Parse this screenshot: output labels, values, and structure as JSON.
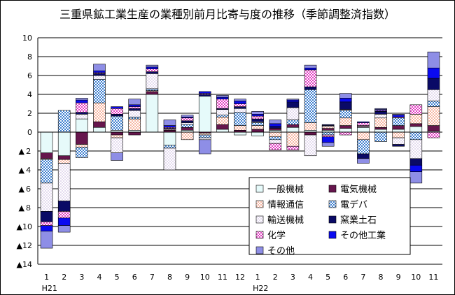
{
  "chart_data": {
    "type": "bar",
    "stacked": true,
    "title": "三重県鉱工業生産の業種別前月比寄与度の推移（季節調整済指数）",
    "categories": [
      "1",
      "2",
      "3",
      "4",
      "5",
      "6",
      "7",
      "8",
      "9",
      "10",
      "11",
      "12",
      "1",
      "2",
      "3",
      "4",
      "5",
      "6",
      "7",
      "8",
      "9",
      "10",
      "11"
    ],
    "year_labels": [
      {
        "index": 0,
        "label": "H21"
      },
      {
        "index": 12,
        "label": "H22"
      }
    ],
    "ylim": [
      -14,
      10
    ],
    "y_ticks": [
      10,
      8,
      6,
      4,
      2,
      0,
      -2,
      -4,
      -6,
      -8,
      -10,
      -12,
      -14
    ],
    "y_tick_labels": [
      "10",
      "8",
      "6",
      "4",
      "2",
      "0",
      "▲２",
      "▲４",
      "▲６",
      "▲８",
      "▲10",
      "▲12",
      "▲14"
    ],
    "grid": true,
    "legend_position": "bottom-right",
    "series": [
      {
        "name": "一般機械",
        "color": "#e6fafa",
        "pattern": "plain",
        "values": [
          -2.2,
          -2.5,
          1.4,
          0.5,
          0.2,
          0.2,
          4.0,
          -1.4,
          0.2,
          3.8,
          0.3,
          -0.3,
          -0.4,
          0.2,
          0.5,
          0.2,
          0.2,
          0.4,
          0.5,
          0.3,
          0.3,
          0.6,
          0.1
        ]
      },
      {
        "name": "電気機械",
        "color": "#66164d",
        "pattern": "plain",
        "values": [
          -0.6,
          -0.4,
          -1.3,
          0.6,
          -0.3,
          -0.3,
          0.3,
          0.2,
          0.3,
          -0.1,
          0.5,
          0.2,
          0.3,
          0.2,
          0.3,
          -0.3,
          0.2,
          0.3,
          0.1,
          0.2,
          0.4,
          0.3,
          0.6
        ]
      },
      {
        "name": "情報通信",
        "color": "#f7b7a3",
        "pattern": "dots",
        "values": [
          -0.1,
          -0.4,
          -0.3,
          2.0,
          -0.3,
          1.2,
          0.1,
          0.1,
          -0.8,
          -0.2,
          0.8,
          0.5,
          0.4,
          -0.5,
          -1.5,
          0.8,
          0.2,
          0.8,
          -0.8,
          1.0,
          -0.6,
          1.0,
          2.0
        ]
      },
      {
        "name": "電デバ",
        "color": "#3d7fd0",
        "pattern": "checker",
        "values": [
          -2.5,
          2.3,
          -1.1,
          2.5,
          1.5,
          0.2,
          0.2,
          -0.3,
          0.3,
          -0.3,
          0.2,
          1.4,
          0.3,
          -0.3,
          0.5,
          3.5,
          -0.3,
          0.8,
          -1.5,
          -1.0,
          0.8,
          -0.8,
          0.6
        ]
      },
      {
        "name": "輸送機械",
        "color": "#e4dbef",
        "pattern": "dots",
        "values": [
          -3.0,
          -4.0,
          0.5,
          0.4,
          -1.6,
          0.7,
          1.6,
          -2.3,
          0.2,
          -0.2,
          0.6,
          0.4,
          0.1,
          -0.4,
          1.3,
          -2.2,
          0.1,
          0.1,
          0.1,
          0.4,
          -0.7,
          -2.0,
          1.2
        ]
      },
      {
        "name": "窯業土石",
        "color": "#0a0a66",
        "pattern": "plain",
        "values": [
          -1.1,
          -1.1,
          0.2,
          0.2,
          0.2,
          0.2,
          0.2,
          0.1,
          0.2,
          0.2,
          0.1,
          0.2,
          0.3,
          0.2,
          0.6,
          0.3,
          0.1,
          0.8,
          -0.5,
          0.3,
          -0.2,
          -0.7,
          1.2
        ]
      },
      {
        "name": "化学",
        "color": "#e33cc3",
        "pattern": "checker",
        "values": [
          -0.4,
          -0.7,
          1.0,
          0.1,
          0.6,
          0.2,
          0.3,
          0.1,
          0.3,
          0.1,
          1.0,
          0.3,
          0.3,
          -0.7,
          -0.4,
          1.8,
          -0.2,
          -0.3,
          0.3,
          0.1,
          0.1,
          1.0,
          -0.6
        ]
      },
      {
        "name": "その他工業",
        "color": "#0a0af0",
        "pattern": "plain",
        "values": [
          -0.6,
          -0.8,
          0.3,
          0.2,
          0.2,
          0.2,
          0.2,
          0.2,
          0.1,
          0.2,
          0.2,
          0.3,
          0.2,
          0.3,
          0.2,
          0.2,
          -0.6,
          0.4,
          0.1,
          0.1,
          0.2,
          -0.7,
          1.1
        ]
      },
      {
        "name": "その他",
        "color": "#8e8ee6",
        "pattern": "plain",
        "values": [
          -1.8,
          -0.7,
          0.2,
          0.7,
          -0.8,
          0.6,
          0.2,
          0.6,
          0.2,
          -1.5,
          0.2,
          0.2,
          0.3,
          0.4,
          0.1,
          0.3,
          -0.4,
          0.5,
          -0.5,
          0.1,
          0.1,
          -1.2,
          1.7
        ]
      }
    ]
  },
  "legend": {
    "items": [
      {
        "name": "一般機械",
        "series_index": 0
      },
      {
        "name": "電気機械",
        "series_index": 1
      },
      {
        "name": "情報通信",
        "series_index": 2
      },
      {
        "name": "電デバ",
        "series_index": 3
      },
      {
        "name": "輸送機械",
        "series_index": 4
      },
      {
        "name": "窯業土石",
        "series_index": 5
      },
      {
        "name": "化学",
        "series_index": 6
      },
      {
        "name": "その他工業",
        "series_index": 7
      },
      {
        "name": "その他",
        "series_index": 8
      }
    ]
  }
}
